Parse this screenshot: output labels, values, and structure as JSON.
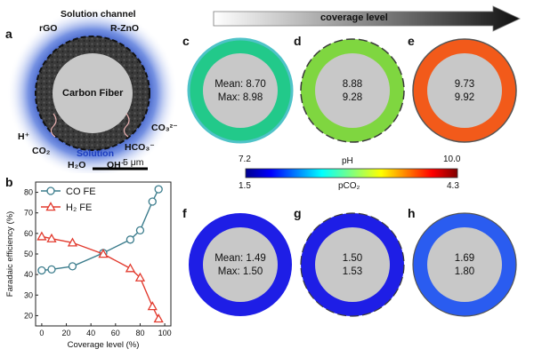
{
  "panel_a": {
    "letter": "a",
    "labels": {
      "channel": "Solution channel",
      "rgo": "rGO",
      "rzno": "R-ZnO",
      "fiber": "Carbon Fiber",
      "h_plus": "H⁺",
      "co2": "CO₂",
      "h2o": "H₂O",
      "oh": "OH⁻",
      "solution": "Solution",
      "hco3": "HCO₃⁻",
      "co3": "CO₃²⁻",
      "scale": "5 μm"
    },
    "colors": {
      "solution": "#1e3fbf",
      "fiber": "#c8c8c8",
      "shell": "#2a2a2a"
    }
  },
  "coverage_arrow": {
    "label": "coverage level"
  },
  "top_row": [
    {
      "letter": "c",
      "line1": "Mean: 8.70",
      "line2": "Max: 8.98",
      "ring_color": "#22c98a"
    },
    {
      "letter": "d",
      "line1": "8.88",
      "line2": "9.28",
      "ring_color": "#7fd640"
    },
    {
      "letter": "e",
      "line1": "9.73",
      "line2": "9.92",
      "ring_color": "#f25a1a"
    }
  ],
  "bottom_row": [
    {
      "letter": "f",
      "line1": "Mean: 1.49",
      "line2": "Max: 1.50",
      "ring_color": "#1e1ee6"
    },
    {
      "letter": "g",
      "line1": "1.50",
      "line2": "1.53",
      "ring_color": "#1e1ee6"
    },
    {
      "letter": "h",
      "line1": "1.69",
      "line2": "1.80",
      "ring_color": "#2a5cf0"
    }
  ],
  "colorbar": {
    "ph_label": "pH",
    "ph_min": "7.2",
    "ph_max": "10.0",
    "pco2_label": "pCO₂",
    "pco2_min": "1.5",
    "pco2_max": "4.3"
  },
  "chart_data": {
    "type": "line",
    "panel_letter": "b",
    "xlabel": "Coverage level (%)",
    "ylabel": "Faradaic efficiency (%)",
    "xlim": [
      -5,
      105
    ],
    "ylim": [
      15,
      85
    ],
    "xticks": [
      "0",
      "20",
      "40",
      "60",
      "80",
      "100"
    ],
    "yticks": [
      "20",
      "30",
      "40",
      "50",
      "60",
      "70",
      "80"
    ],
    "series": [
      {
        "name": "CO FE",
        "color": "#3b7c8c",
        "marker": "circle",
        "x": [
          0,
          8,
          25,
          50,
          72,
          80,
          90,
          95
        ],
        "y": [
          42,
          42.5,
          44,
          50.5,
          57,
          61.5,
          75.5,
          81.5
        ]
      },
      {
        "name": "H₂ FE",
        "color": "#e23a2e",
        "marker": "triangle",
        "x": [
          0,
          8,
          25,
          50,
          72,
          80,
          90,
          95
        ],
        "y": [
          58.5,
          57.5,
          55.5,
          50,
          43,
          38.5,
          24.5,
          18.5
        ]
      }
    ]
  }
}
